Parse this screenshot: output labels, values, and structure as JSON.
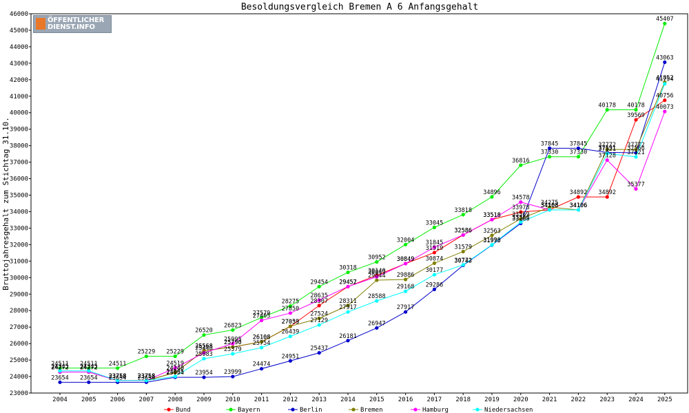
{
  "logo": {
    "line1": "ÖFFENTLICHER",
    "line2": "DIENST.INFO"
  },
  "chart_data": {
    "type": "line",
    "title": "Besoldungsvergleich Bremen A 6 Anfangsgehalt",
    "xlabel": "",
    "ylabel": "Bruttojahresgehalt zum Stichtag 31.10.",
    "ylim": [
      23000,
      46000
    ],
    "ytick_step": 1000,
    "grid": false,
    "legend": "bottom",
    "categories": [
      "2004",
      "2005",
      "2006",
      "2007",
      "2008",
      "2009",
      "2010",
      "2011",
      "2012",
      "2013",
      "2014",
      "2015",
      "2016",
      "2017",
      "2018",
      "2019",
      "2020",
      "2021",
      "2022",
      "2023",
      "2024",
      "2025"
    ],
    "series": [
      {
        "name": "Bund",
        "color": "#ff0000",
        "values": [
          24272,
          24272,
          23758,
          23758,
          24240,
          25568,
          25790,
          26108,
          27039,
          28307,
          29452,
          30140,
          30849,
          31519,
          32586,
          33518,
          33978,
          34108,
          34892,
          34892,
          39569,
          40756
        ]
      },
      {
        "name": "Bayern",
        "color": "#00ee00",
        "values": [
          24511,
          24511,
          24511,
          25229,
          25229,
          26520,
          26823,
          27579,
          28275,
          29454,
          30318,
          30952,
          32004,
          33045,
          33818,
          34896,
          36816,
          37330,
          37330,
          40178,
          40178,
          45407
        ]
      },
      {
        "name": "Berlin",
        "color": "#0000cc",
        "values": [
          23654,
          23654,
          23654,
          23654,
          23954,
          23954,
          23999,
          24474,
          24951,
          25437,
          26181,
          26947,
          27917,
          29286,
          30743,
          31975,
          33288,
          37845,
          37845,
          37591,
          37566,
          43063
        ]
      },
      {
        "name": "Bremen",
        "color": "#808000",
        "values": [
          24272,
          24272,
          23758,
          23758,
          24240,
          25568,
          25790,
          26108,
          27053,
          27524,
          28311,
          29844,
          29886,
          30874,
          31579,
          32563,
          33569,
          34275,
          34106,
          37772,
          37772,
          41852
        ]
      },
      {
        "name": "Hamburg",
        "color": "#ff00ff",
        "values": [
          24272,
          24272,
          23758,
          23758,
          24519,
          25440,
          25995,
          27405,
          27850,
          28635,
          29457,
          30049,
          30849,
          31845,
          32586,
          33518,
          34578,
          34108,
          34106,
          37128,
          35377,
          40073
        ]
      },
      {
        "name": "Niedersachsen",
        "color": "#00ffff",
        "values": [
          24345,
          24345,
          23758,
          23758,
          24005,
          25083,
          25379,
          25754,
          26439,
          27129,
          27917,
          28588,
          29168,
          30177,
          30772,
          31990,
          33366,
          34108,
          34106,
          37521,
          37321,
          41754
        ]
      }
    ]
  }
}
